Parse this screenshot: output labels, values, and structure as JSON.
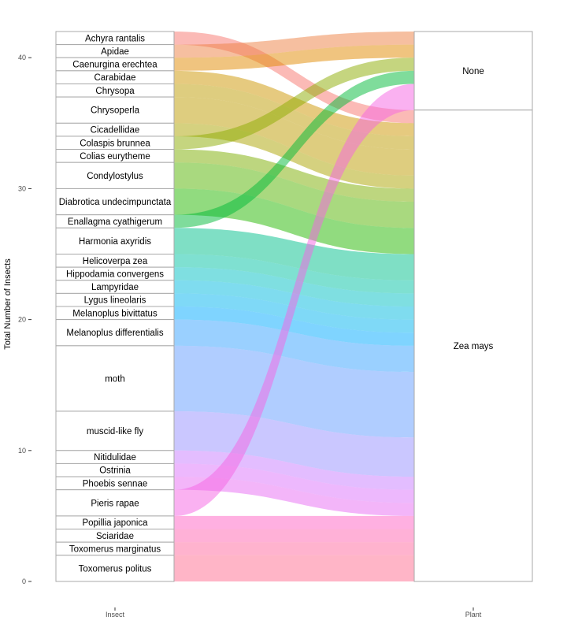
{
  "chart_data": {
    "type": "alluvial",
    "title": "",
    "ylabel": "Total Number of Insects",
    "axes": [
      "Insect",
      "Plant"
    ],
    "ylim": [
      0,
      42
    ],
    "yticks": [
      0,
      10,
      20,
      30,
      40
    ],
    "grid": false,
    "insects": [
      {
        "name": "Achyra rantalis",
        "value": 1,
        "color": "#F8766D"
      },
      {
        "name": "Apidae",
        "value": 1,
        "color": "#EE8042"
      },
      {
        "name": "Caenurgina erechtea",
        "value": 1,
        "color": "#E18A00"
      },
      {
        "name": "Carabidae",
        "value": 1,
        "color": "#CD9600"
      },
      {
        "name": "Chrysopa",
        "value": 1,
        "color": "#BE9C00"
      },
      {
        "name": "Chrysoperla",
        "value": 2,
        "color": "#BE9C00"
      },
      {
        "name": "Cicadellidae",
        "value": 1,
        "color": "#ABA300"
      },
      {
        "name": "Colaspis brunnea",
        "value": 1,
        "color": "#8CAB00"
      },
      {
        "name": "Colias eurytheme",
        "value": 1,
        "color": "#7CAE00"
      },
      {
        "name": "Condylostylus",
        "value": 2,
        "color": "#53B400"
      },
      {
        "name": "Diabrotica undecimpunctata",
        "value": 2,
        "color": "#24B700"
      },
      {
        "name": "Enallagma cyathigerum",
        "value": 1,
        "color": "#00BA38"
      },
      {
        "name": "Harmonia axyridis",
        "value": 2,
        "color": "#00C08B"
      },
      {
        "name": "Helicoverpa zea",
        "value": 1,
        "color": "#00C1A3"
      },
      {
        "name": "Hippodamia convergens",
        "value": 1,
        "color": "#00BFC4"
      },
      {
        "name": "Lampyridae",
        "value": 1,
        "color": "#00BAE0"
      },
      {
        "name": "Lygus lineolaris",
        "value": 1,
        "color": "#00B4EF"
      },
      {
        "name": "Melanoplus bivittatus",
        "value": 1,
        "color": "#00A9FF"
      },
      {
        "name": "Melanoplus differentialis",
        "value": 2,
        "color": "#35A2FF"
      },
      {
        "name": "moth",
        "value": 5,
        "color": "#619CFF"
      },
      {
        "name": "muscid-like fly",
        "value": 3,
        "color": "#9590FF"
      },
      {
        "name": "Nitidulidae",
        "value": 1,
        "color": "#C77CFF"
      },
      {
        "name": "Ostrinia",
        "value": 1,
        "color": "#DB72FB"
      },
      {
        "name": "Phoebis sennae",
        "value": 1,
        "color": "#E76BF3"
      },
      {
        "name": "Pieris rapae",
        "value": 2,
        "color": "#F564E3"
      },
      {
        "name": "Popillia japonica",
        "value": 1,
        "color": "#FF61C3"
      },
      {
        "name": "Sciaridae",
        "value": 1,
        "color": "#FF64B0"
      },
      {
        "name": "Toxomerus marginatus",
        "value": 1,
        "color": "#FF689E"
      },
      {
        "name": "Toxomerus politus",
        "value": 2,
        "color": "#FF6C90"
      }
    ],
    "plants": [
      {
        "name": "None",
        "value": 6
      },
      {
        "name": "Zea mays",
        "value": 36
      }
    ],
    "flows": [
      {
        "insect": "Achyra rantalis",
        "plant": "Zea mays",
        "value": 1
      },
      {
        "insect": "Apidae",
        "plant": "None",
        "value": 1
      },
      {
        "insect": "Caenurgina erechtea",
        "plant": "None",
        "value": 1
      },
      {
        "insect": "Carabidae",
        "plant": "Zea mays",
        "value": 1
      },
      {
        "insect": "Chrysopa",
        "plant": "Zea mays",
        "value": 1
      },
      {
        "insect": "Chrysoperla",
        "plant": "Zea mays",
        "value": 2
      },
      {
        "insect": "Cicadellidae",
        "plant": "Zea mays",
        "value": 1
      },
      {
        "insect": "Colaspis brunnea",
        "plant": "None",
        "value": 1
      },
      {
        "insect": "Colias eurytheme",
        "plant": "Zea mays",
        "value": 1
      },
      {
        "insect": "Condylostylus",
        "plant": "Zea mays",
        "value": 2
      },
      {
        "insect": "Diabrotica undecimpunctata",
        "plant": "Zea mays",
        "value": 2
      },
      {
        "insect": "Enallagma cyathigerum",
        "plant": "None",
        "value": 1
      },
      {
        "insect": "Harmonia axyridis",
        "plant": "Zea mays",
        "value": 2
      },
      {
        "insect": "Helicoverpa zea",
        "plant": "Zea mays",
        "value": 1
      },
      {
        "insect": "Hippodamia convergens",
        "plant": "Zea mays",
        "value": 1
      },
      {
        "insect": "Lampyridae",
        "plant": "Zea mays",
        "value": 1
      },
      {
        "insect": "Lygus lineolaris",
        "plant": "Zea mays",
        "value": 1
      },
      {
        "insect": "Melanoplus bivittatus",
        "plant": "Zea mays",
        "value": 1
      },
      {
        "insect": "Melanoplus differentialis",
        "plant": "Zea mays",
        "value": 2
      },
      {
        "insect": "moth",
        "plant": "Zea mays",
        "value": 5
      },
      {
        "insect": "muscid-like fly",
        "plant": "Zea mays",
        "value": 3
      },
      {
        "insect": "Nitidulidae",
        "plant": "Zea mays",
        "value": 1
      },
      {
        "insect": "Ostrinia",
        "plant": "Zea mays",
        "value": 1
      },
      {
        "insect": "Phoebis sennae",
        "plant": "Zea mays",
        "value": 1
      },
      {
        "insect": "Pieris rapae",
        "plant": "None",
        "value": 2
      },
      {
        "insect": "Popillia japonica",
        "plant": "Zea mays",
        "value": 1
      },
      {
        "insect": "Sciaridae",
        "plant": "Zea mays",
        "value": 1
      },
      {
        "insect": "Toxomerus marginatus",
        "plant": "Zea mays",
        "value": 1
      },
      {
        "insect": "Toxomerus politus",
        "plant": "Zea mays",
        "value": 2
      }
    ]
  }
}
